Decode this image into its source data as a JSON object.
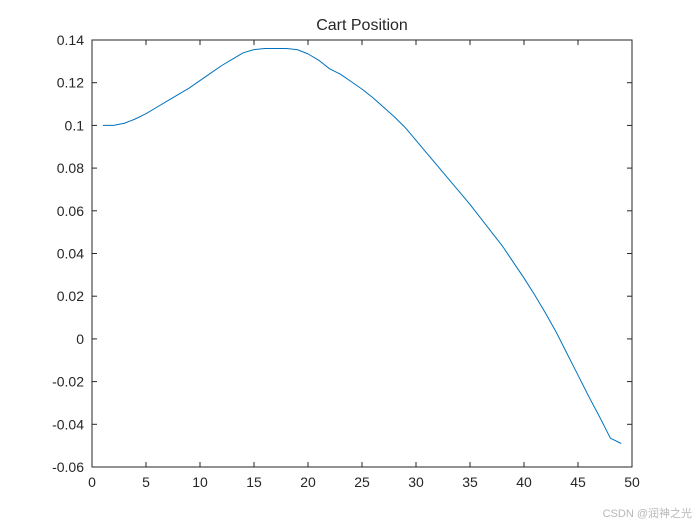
{
  "chart_data": {
    "type": "line",
    "title": "Cart Position",
    "xlabel": "",
    "ylabel": "",
    "xlim": [
      0,
      50
    ],
    "ylim": [
      -0.06,
      0.14
    ],
    "xticks": [
      0,
      5,
      10,
      15,
      20,
      25,
      30,
      35,
      40,
      45,
      50
    ],
    "xtick_labels": [
      "0",
      "5",
      "10",
      "15",
      "20",
      "25",
      "30",
      "35",
      "40",
      "45",
      "50"
    ],
    "yticks": [
      0.14,
      0.12,
      0.1,
      0.08,
      0.06,
      0.04,
      0.02,
      0,
      -0.02,
      -0.04,
      -0.06
    ],
    "ytick_labels": [
      "0.14",
      "0.12",
      "0.1",
      "0.08",
      "0.06",
      "0.04",
      "0.02",
      "0",
      "-0.02",
      "-0.04",
      "-0.06"
    ],
    "grid": false,
    "series": [
      {
        "color": "#0072bd",
        "x": [
          1,
          2,
          3,
          4,
          5,
          6,
          7,
          8,
          9,
          10,
          11,
          12,
          13,
          14,
          15,
          16,
          17,
          18,
          19,
          20,
          21,
          22,
          23,
          24,
          25,
          26,
          27,
          28,
          29,
          30,
          31,
          32,
          33,
          34,
          35,
          36,
          37,
          38,
          39,
          40,
          41,
          42,
          43,
          44,
          45,
          46,
          47,
          48,
          49
        ],
        "y": [
          0.1,
          0.1,
          0.101,
          0.103,
          0.1055,
          0.1085,
          0.1115,
          0.1145,
          0.1175,
          0.121,
          0.1245,
          0.128,
          0.131,
          0.134,
          0.1355,
          0.136,
          0.136,
          0.136,
          0.1355,
          0.1335,
          0.1305,
          0.1265,
          0.124,
          0.1205,
          0.117,
          0.113,
          0.1085,
          0.104,
          0.099,
          0.093,
          0.087,
          0.081,
          0.075,
          0.069,
          0.063,
          0.0565,
          0.05,
          0.0435,
          0.036,
          0.0285,
          0.0205,
          0.012,
          0.003,
          -0.007,
          -0.017,
          -0.027,
          -0.0365,
          -0.0465,
          -0.049
        ]
      }
    ]
  },
  "watermark": "CSDN @润神之光"
}
